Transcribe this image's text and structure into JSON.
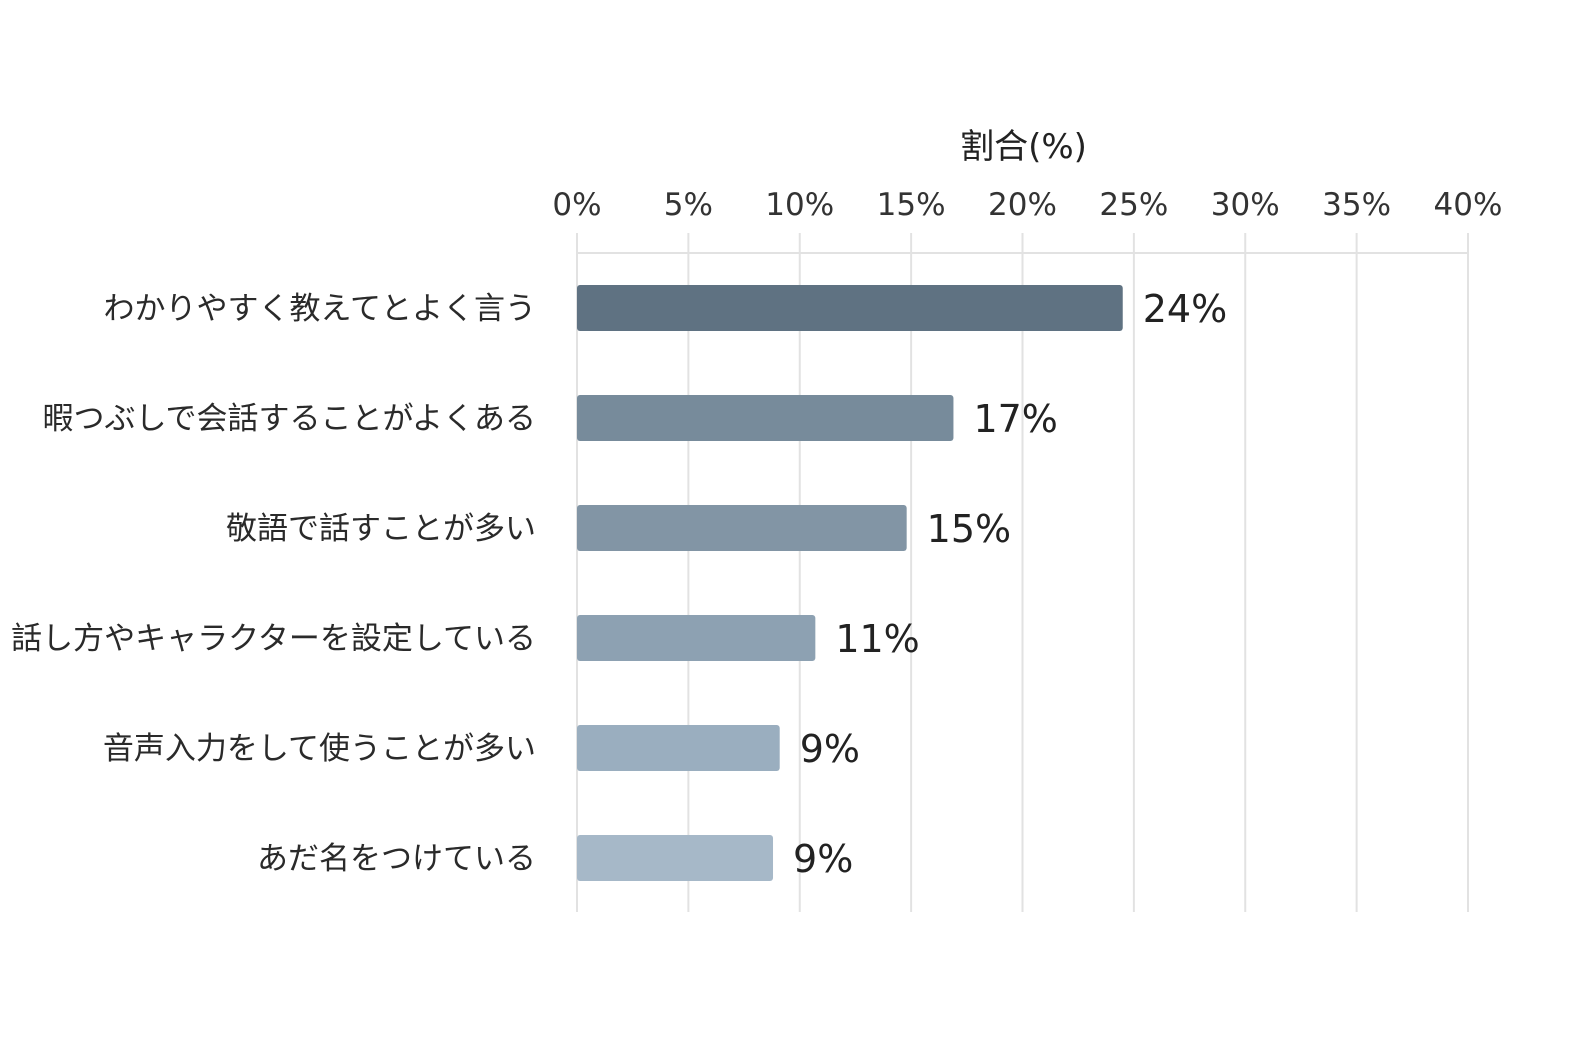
{
  "chart_data": {
    "type": "bar",
    "orientation": "horizontal",
    "xlabel": "割合(%)",
    "xlim": [
      0,
      40
    ],
    "x_ticks": [
      0,
      5,
      10,
      15,
      20,
      25,
      30,
      35,
      40
    ],
    "x_tick_labels": [
      "0%",
      "5%",
      "10%",
      "15%",
      "20%",
      "25%",
      "30%",
      "35%",
      "40%"
    ],
    "axis_position": "top",
    "grid": true,
    "categories": [
      "わかりやすく教えてとよく言う",
      "暇つぶしで会話することがよくある",
      "敬語で話すことが多い",
      "話し方やキャラクターを設定している",
      "音声入力をして使うことが多い",
      "あだ名をつけている"
    ],
    "values": [
      24.5,
      16.9,
      14.8,
      10.7,
      9.1,
      8.8
    ],
    "data_labels": [
      "24%",
      "17%",
      "15%",
      "11%",
      "9%",
      "9%"
    ],
    "bar_colors": [
      "#5f7282",
      "#778b9b",
      "#8295a5",
      "#8da1b2",
      "#9aaebf",
      "#a6b8c8"
    ]
  }
}
